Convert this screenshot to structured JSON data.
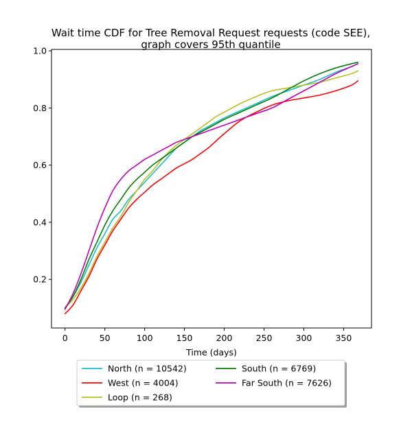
{
  "chart_data": {
    "type": "line",
    "title": "Wait time CDF for Tree Removal Request  requests (code SEE), graph covers 95th quantile",
    "title_lines": [
      "Wait time CDF for Tree Removal Request  requests (code SEE),",
      "graph covers 95th quantile"
    ],
    "xlabel": "Time (days)",
    "ylabel": "",
    "xlim": [
      -17,
      385
    ],
    "ylim": [
      0.03,
      1.005
    ],
    "xticks": [
      0,
      50,
      100,
      150,
      200,
      250,
      300,
      350
    ],
    "yticks": [
      0.2,
      0.4,
      0.6,
      0.8,
      1.0
    ],
    "ytick_labels": [
      "0.2",
      "0.4",
      "0.6",
      "0.8",
      "1.0"
    ],
    "grid": false,
    "legend_position": "bottom-center",
    "series": [
      {
        "name": "North (n = 10542)",
        "color": "#17becf",
        "x": [
          0,
          10,
          20,
          30,
          40,
          50,
          60,
          70,
          80,
          90,
          100,
          110,
          120,
          130,
          140,
          150,
          160,
          170,
          180,
          190,
          200,
          220,
          240,
          260,
          280,
          300,
          320,
          340,
          360,
          368
        ],
        "y": [
          0.1,
          0.14,
          0.19,
          0.25,
          0.31,
          0.36,
          0.41,
          0.44,
          0.48,
          0.51,
          0.54,
          0.57,
          0.6,
          0.63,
          0.66,
          0.68,
          0.7,
          0.72,
          0.735,
          0.75,
          0.765,
          0.79,
          0.815,
          0.84,
          0.86,
          0.88,
          0.9,
          0.925,
          0.945,
          0.955
        ]
      },
      {
        "name": "West (n = 4004)",
        "color": "#ff0000",
        "x": [
          0,
          10,
          20,
          30,
          40,
          50,
          60,
          70,
          80,
          90,
          100,
          110,
          120,
          130,
          140,
          150,
          160,
          170,
          180,
          190,
          200,
          220,
          240,
          260,
          280,
          300,
          320,
          340,
          360,
          368
        ],
        "y": [
          0.08,
          0.11,
          0.16,
          0.21,
          0.27,
          0.32,
          0.37,
          0.41,
          0.45,
          0.48,
          0.505,
          0.53,
          0.55,
          0.57,
          0.59,
          0.605,
          0.62,
          0.64,
          0.66,
          0.685,
          0.71,
          0.755,
          0.785,
          0.81,
          0.825,
          0.835,
          0.845,
          0.86,
          0.88,
          0.895
        ]
      },
      {
        "name": "Loop (n = 268)",
        "color": "#bcbd22",
        "x": [
          0,
          10,
          20,
          30,
          40,
          50,
          60,
          70,
          80,
          90,
          100,
          110,
          120,
          130,
          140,
          150,
          160,
          170,
          180,
          190,
          200,
          220,
          240,
          260,
          280,
          300,
          320,
          340,
          360,
          368
        ],
        "y": [
          0.1,
          0.13,
          0.17,
          0.22,
          0.28,
          0.33,
          0.38,
          0.42,
          0.47,
          0.51,
          0.55,
          0.58,
          0.615,
          0.645,
          0.67,
          0.69,
          0.71,
          0.73,
          0.75,
          0.77,
          0.785,
          0.815,
          0.84,
          0.86,
          0.87,
          0.88,
          0.89,
          0.905,
          0.92,
          0.93
        ]
      },
      {
        "name": "South (n = 6769)",
        "color": "#008000",
        "x": [
          0,
          10,
          20,
          30,
          40,
          50,
          60,
          70,
          80,
          90,
          100,
          110,
          120,
          130,
          140,
          150,
          160,
          170,
          180,
          190,
          200,
          220,
          240,
          260,
          280,
          300,
          320,
          340,
          360,
          368
        ],
        "y": [
          0.1,
          0.14,
          0.2,
          0.27,
          0.33,
          0.39,
          0.44,
          0.48,
          0.52,
          0.55,
          0.575,
          0.6,
          0.62,
          0.64,
          0.66,
          0.68,
          0.7,
          0.715,
          0.73,
          0.745,
          0.76,
          0.785,
          0.81,
          0.835,
          0.865,
          0.895,
          0.92,
          0.94,
          0.955,
          0.96
        ]
      },
      {
        "name": "Far South (n = 7626)",
        "color": "#bf00bf",
        "x": [
          0,
          10,
          20,
          30,
          40,
          50,
          60,
          70,
          80,
          90,
          100,
          110,
          120,
          130,
          140,
          150,
          160,
          170,
          180,
          190,
          200,
          220,
          240,
          260,
          280,
          300,
          320,
          340,
          360,
          368
        ],
        "y": [
          0.095,
          0.15,
          0.22,
          0.3,
          0.38,
          0.45,
          0.51,
          0.55,
          0.58,
          0.6,
          0.62,
          0.635,
          0.65,
          0.665,
          0.68,
          0.69,
          0.7,
          0.71,
          0.72,
          0.73,
          0.74,
          0.76,
          0.78,
          0.8,
          0.83,
          0.86,
          0.89,
          0.92,
          0.945,
          0.955
        ]
      }
    ]
  }
}
